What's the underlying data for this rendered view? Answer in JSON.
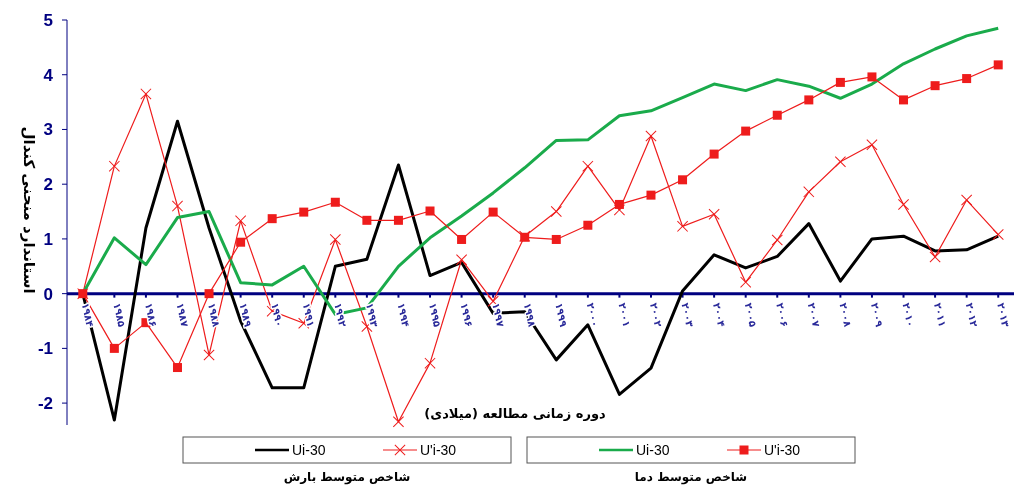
{
  "chart_data": {
    "type": "line",
    "xlabel": "دوره زمانی مطالعه (میلادی)",
    "ylabel": "استاندارد منحنی کندال",
    "categories": [
      "۱۹۸۴",
      "۱۹۸۵",
      "۱۹۸۶",
      "۱۹۸۷",
      "۱۹۸۸",
      "۱۹۸۹",
      "۱۹۹۰",
      "۱۹۹۱",
      "۱۹۹۲",
      "۱۹۹۳",
      "۱۹۹۴",
      "۱۹۹۵",
      "۱۹۹۶",
      "۱۹۹۷",
      "۱۹۹۸",
      "۱۹۹۹",
      "۲۰۰۰",
      "۲۰۰۱",
      "۲۰۰۲",
      "۲۰۰۳",
      "۲۰۰۴",
      "۲۰۰۵",
      "۲۰۰۶",
      "۲۰۰۷",
      "۲۰۰۸",
      "۲۰۰۹",
      "۲۰۱۰",
      "۲۰۱۱",
      "۲۰۱۲",
      "۲۰۱۳"
    ],
    "series": [
      {
        "name": "Ui-30",
        "color": "#000000",
        "marker": "none",
        "values": [
          0,
          -2.31,
          1.2,
          3.15,
          1.2,
          -0.5,
          -1.72,
          -1.72,
          0.5,
          0.63,
          2.35,
          0.33,
          0.57,
          -0.36,
          -0.33,
          -1.21,
          -0.57,
          -1.84,
          -1.36,
          0.05,
          0.71,
          0.47,
          0.68,
          1.28,
          0.23,
          1.0,
          1.05,
          0.78,
          0.8,
          1.05
        ]
      },
      {
        "name": "U'i-30",
        "color": "#ee1c1c",
        "marker": "cross",
        "values": [
          0,
          2.33,
          3.65,
          1.6,
          -1.12,
          1.33,
          -0.32,
          -0.54,
          0.99,
          -0.6,
          -2.34,
          -1.27,
          0.62,
          -0.14,
          1.05,
          1.5,
          2.33,
          1.53,
          2.88,
          1.23,
          1.45,
          0.21,
          0.98,
          1.86,
          2.41,
          2.72,
          1.63,
          0.67,
          1.71,
          1.08
        ]
      },
      {
        "name": "Ui-30",
        "color": "#1aab4b",
        "marker": "none",
        "values": [
          0,
          1.02,
          0.53,
          1.39,
          1.5,
          0.2,
          0.16,
          0.5,
          -0.38,
          -0.26,
          0.5,
          1.02,
          1.42,
          1.84,
          2.3,
          2.8,
          2.81,
          3.25,
          3.34,
          3.58,
          3.83,
          3.71,
          3.91,
          3.79,
          3.57,
          3.83,
          4.2,
          4.47,
          4.71,
          4.85
        ]
      },
      {
        "name": "U'i-30",
        "color": "#ee1c1c",
        "marker": "square",
        "values": [
          0,
          -1.0,
          -0.53,
          -1.35,
          0,
          0.94,
          1.37,
          1.49,
          1.67,
          1.34,
          1.34,
          1.51,
          0.99,
          1.49,
          1.03,
          0.99,
          1.25,
          1.63,
          1.8,
          2.08,
          2.55,
          2.97,
          3.26,
          3.54,
          3.86,
          3.96,
          3.54,
          3.8,
          3.93,
          4.18
        ]
      }
    ],
    "ylim": [
      -2.4,
      5
    ],
    "yticks": [
      -2,
      -1,
      0,
      1,
      2,
      3,
      4,
      5
    ],
    "legend": "bottom",
    "annotations": [
      "شاخص متوسط بارش",
      "شاخص متوسط دما"
    ]
  }
}
